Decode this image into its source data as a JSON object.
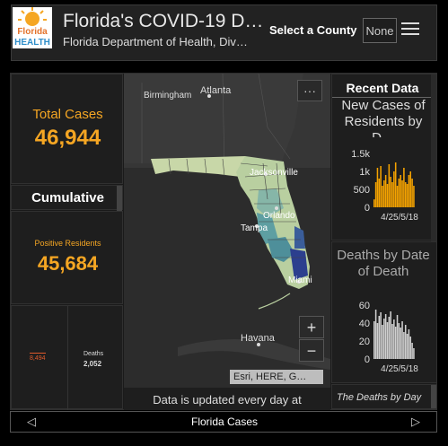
{
  "header": {
    "title": "Florida's COVID-19 D…",
    "subtitle": "Florida Department of Health, Div…",
    "logo_top": "Florida",
    "logo_bottom": "HEALTH",
    "county_label": "Select a County",
    "county_value": "None"
  },
  "left": {
    "total_label": "Total Cases",
    "total_value": "46,944",
    "cumulative_label": "Cumulative",
    "positive_label": "Positive Residents",
    "positive_value": "45,684",
    "small_value": "8,494",
    "deaths_label": "Deaths",
    "deaths_value": "2,052"
  },
  "map": {
    "more_label": "···",
    "labels": [
      "Birmingham",
      "Atlanta",
      "Jacksonville",
      "Orlando",
      "Tampa",
      "Miami",
      "Havana"
    ],
    "zoom_in": "+",
    "zoom_out": "−",
    "attribution": "Esri, HERE, G…",
    "update_note": "Data is updated every day at"
  },
  "right": {
    "recent_title": "Recent Data",
    "new_cases_title": "New Cases of Residents by D…",
    "deaths_title": "Deaths by Date of Death",
    "note": "The Deaths by Day"
  },
  "chart_data": [
    {
      "type": "bar",
      "title": "New Cases of Residents by D…",
      "y_ticks": [
        "1.5k",
        "1k",
        "500",
        "0"
      ],
      "ylim": [
        0,
        1500
      ],
      "x_tick_label": "4/25/5/18",
      "values": [
        220,
        700,
        1100,
        800,
        1150,
        600,
        750,
        900,
        650,
        1200,
        850,
        700,
        1000,
        1250,
        600,
        800,
        900,
        750,
        1100,
        700,
        650,
        900,
        1000,
        800,
        600
      ],
      "color": "#f5a300"
    },
    {
      "type": "bar",
      "title": "Deaths by Date of Death",
      "y_ticks": [
        "60",
        "40",
        "20",
        "0"
      ],
      "ylim": [
        0,
        60
      ],
      "x_tick_label": "4/25/5/18",
      "values": [
        42,
        55,
        40,
        48,
        52,
        38,
        45,
        50,
        41,
        47,
        53,
        39,
        44,
        36,
        49,
        40,
        35,
        42,
        30,
        38,
        28,
        33,
        25,
        18,
        12
      ],
      "color": "#d0d0d0"
    }
  ],
  "footer": {
    "label": "Florida Cases",
    "prev_icon": "◁",
    "next_icon": "▷"
  }
}
